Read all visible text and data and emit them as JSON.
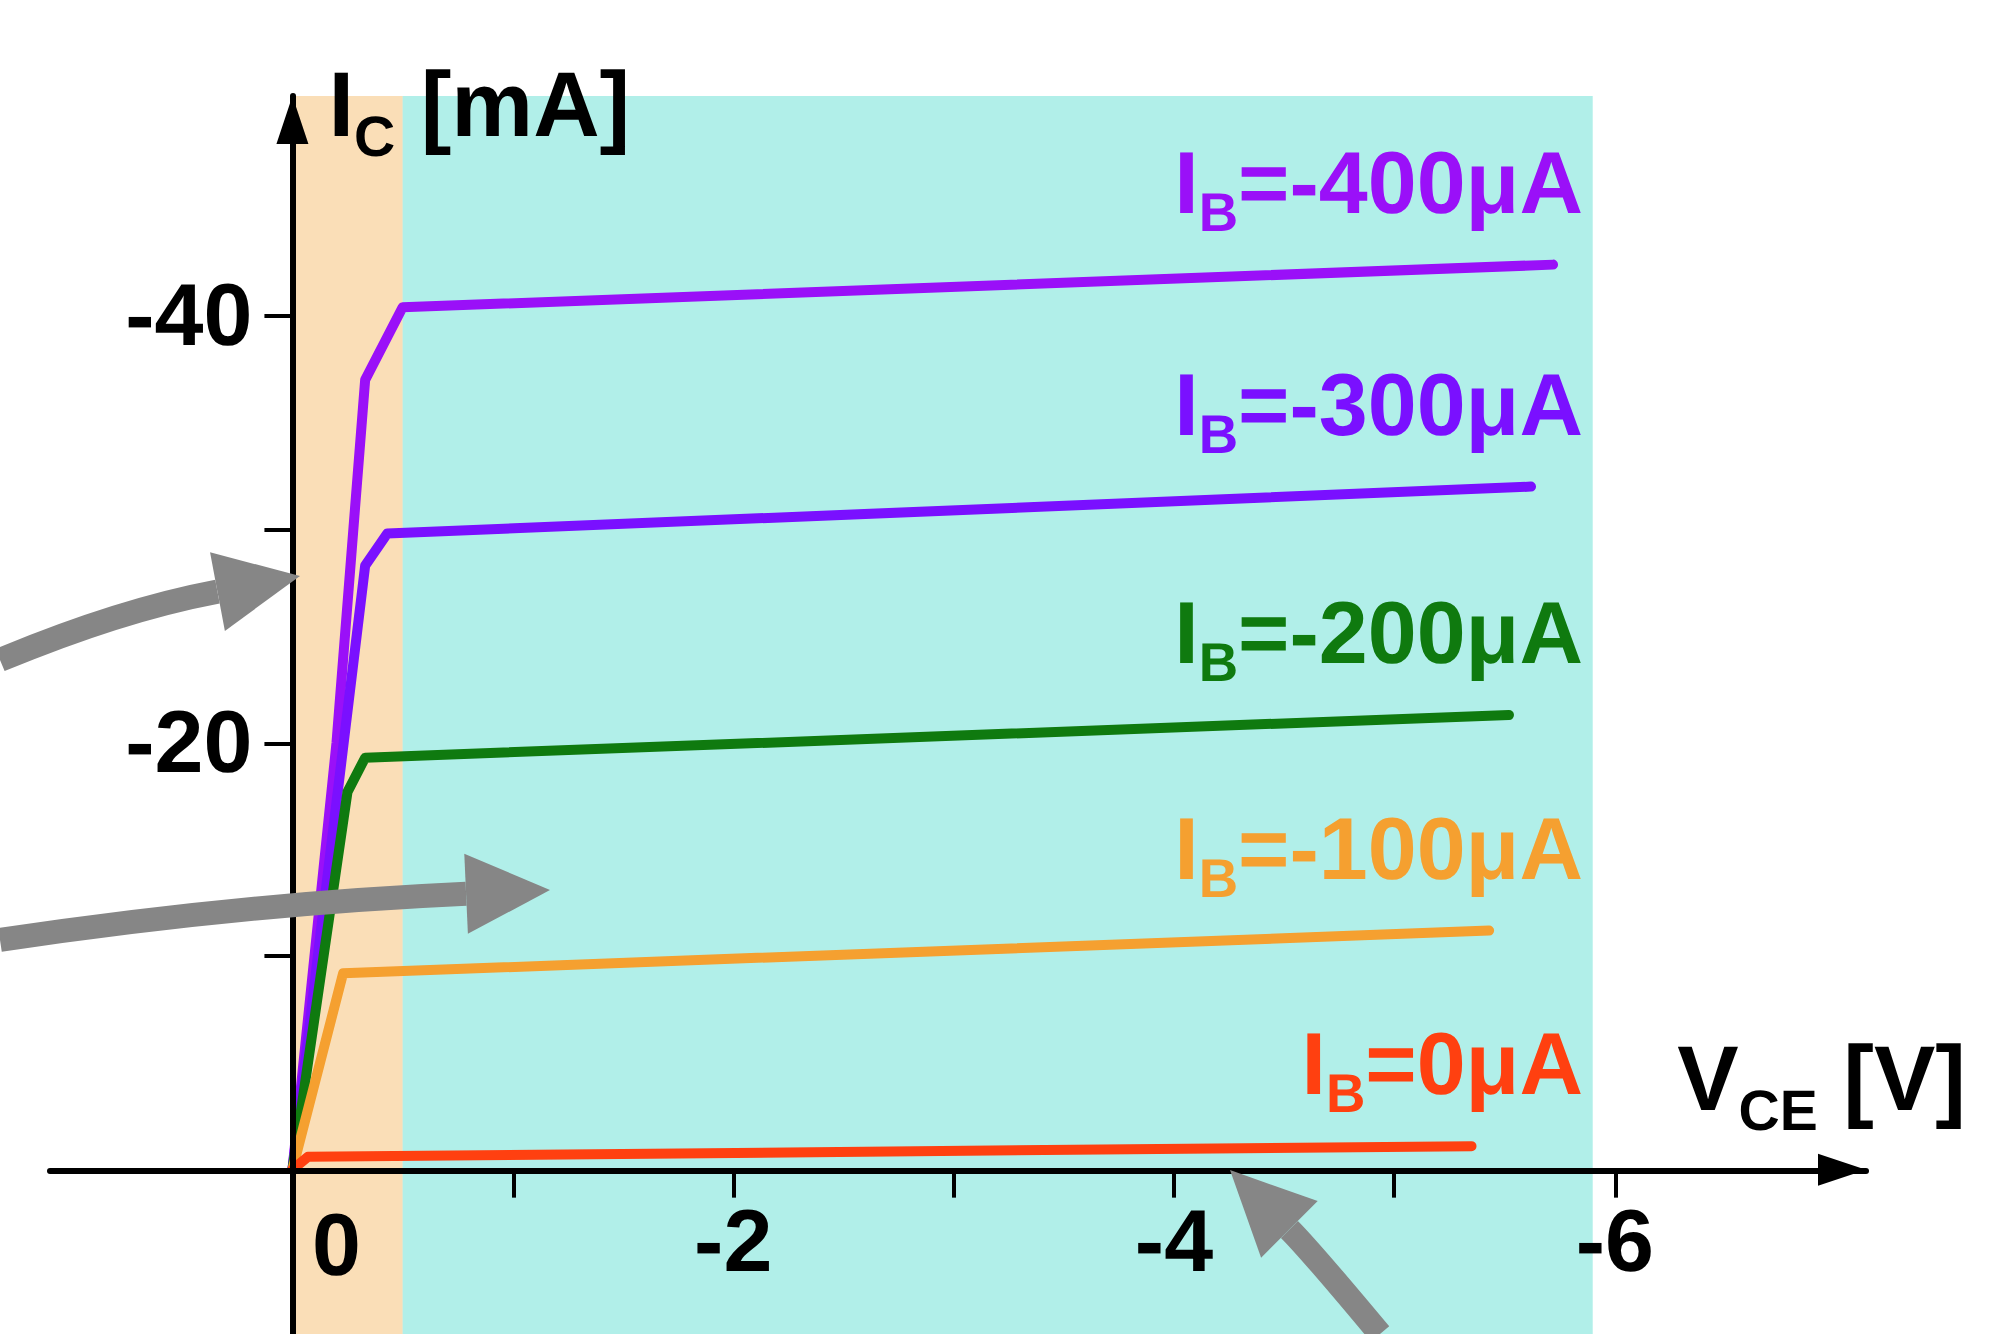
{
  "chart_data": {
    "type": "line",
    "xlabel": "V$_{CE}$ [V]",
    "ylabel": "I$_{C}$ [mA]",
    "xlim": [
      1.1,
      -7.14
    ],
    "ylim": [
      7.7,
      -50.3
    ],
    "xticks": [
      0,
      {
        "value": -1,
        "label": null
      },
      -2,
      {
        "value": -3,
        "label": null
      },
      -4,
      {
        "value": -5,
        "label": null
      },
      -6
    ],
    "yticks": [
      {
        "value": -10,
        "label": null
      },
      -20,
      {
        "value": -30,
        "label": null
      },
      -40
    ],
    "grid": false,
    "legend": false,
    "marker": "none",
    "line_style": "solid",
    "bands": [
      {
        "axis": "x",
        "from": 0,
        "to": -0.5,
        "color": "#f0a030"
      },
      {
        "axis": "x",
        "from": -0.5,
        "to": -5.9,
        "color": "#20d0c0"
      }
    ],
    "series": [
      {
        "name": "I$_{B}$=-400μA",
        "color": "#9a10f8",
        "x": [
          0,
          -0.2,
          -0.33,
          -0.5,
          -5.72
        ],
        "values": [
          0,
          -20,
          -37,
          -40.4,
          -42.4
        ]
      },
      {
        "name": "I$_{B}$=-300μA",
        "color": "#7a10ff",
        "x": [
          0,
          -0.12,
          -0.33,
          -0.43,
          -5.62
        ],
        "values": [
          0,
          -10.4,
          -28.3,
          -29.8,
          -32.0
        ]
      },
      {
        "name": "I$_{B}$=-200μA",
        "color": "#0f7a0f",
        "x": [
          0,
          -0.25,
          -0.33,
          -5.52
        ],
        "values": [
          0,
          -17.7,
          -19.3,
          -21.3
        ]
      },
      {
        "name": "I$_{B}$=-100μA",
        "color": "#f5a030",
        "x": [
          0,
          -0.23,
          -5.43
        ],
        "values": [
          0,
          -9.2,
          -11.2
        ]
      },
      {
        "name": "I$_{B}$=0μA",
        "color": "#ff4010",
        "x": [
          0,
          -0.07,
          -5.35
        ],
        "values": [
          0,
          -0.6,
          -1.1
        ]
      }
    ]
  }
}
